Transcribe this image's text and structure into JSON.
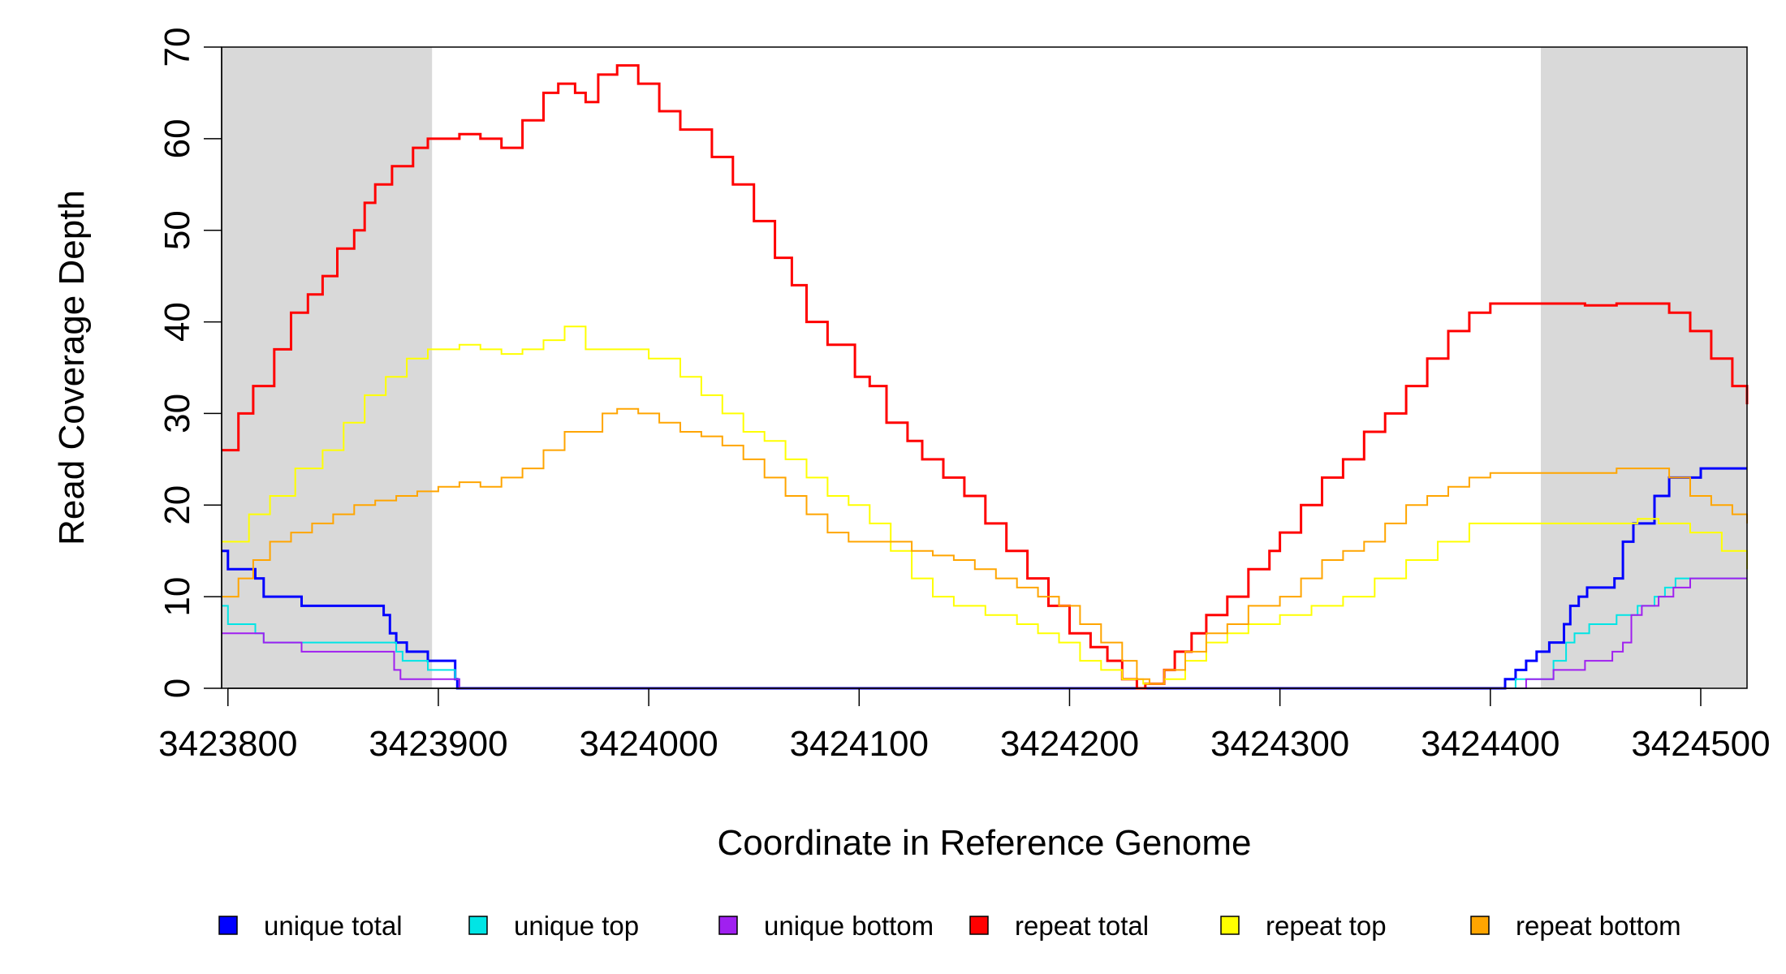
{
  "chart_data": {
    "type": "line",
    "title": "",
    "xlabel": "Coordinate in Reference Genome",
    "ylabel": "Read Coverage Depth",
    "xlim": [
      3423797,
      3424522
    ],
    "ylim": [
      0,
      70
    ],
    "x_ticks": [
      3423800,
      3423900,
      3424000,
      3424100,
      3424200,
      3424300,
      3424400,
      3424500
    ],
    "y_ticks": [
      0,
      10,
      20,
      30,
      40,
      50,
      60,
      70
    ],
    "shaded_regions": [
      [
        3423797,
        3423897
      ],
      [
        3424424,
        3424522
      ]
    ],
    "shade_color": "#d9d9d9",
    "legend_position": "bottom",
    "series": [
      {
        "name": "unique total",
        "color": "#0000ff",
        "width": 3,
        "points": [
          [
            3423797,
            15
          ],
          [
            3423800,
            13
          ],
          [
            3423813,
            12
          ],
          [
            3423817,
            10
          ],
          [
            3423835,
            9
          ],
          [
            3423874,
            8
          ],
          [
            3423877,
            6
          ],
          [
            3423880,
            5
          ],
          [
            3423885,
            4
          ],
          [
            3423895,
            3
          ],
          [
            3423908,
            1
          ],
          [
            3423909,
            0
          ],
          [
            3424405,
            0
          ],
          [
            3424407,
            1
          ],
          [
            3424412,
            2
          ],
          [
            3424417,
            3
          ],
          [
            3424422,
            4
          ],
          [
            3424428,
            5
          ],
          [
            3424435,
            7
          ],
          [
            3424438,
            9
          ],
          [
            3424442,
            10
          ],
          [
            3424446,
            11
          ],
          [
            3424459,
            12
          ],
          [
            3424463,
            16
          ],
          [
            3424468,
            18
          ],
          [
            3424478,
            21
          ],
          [
            3424485,
            23
          ],
          [
            3424500,
            24
          ],
          [
            3424522,
            24
          ]
        ]
      },
      {
        "name": "unique top",
        "color": "#00e5e5",
        "width": 2,
        "points": [
          [
            3423797,
            9
          ],
          [
            3423800,
            7
          ],
          [
            3423813,
            6
          ],
          [
            3423817,
            5
          ],
          [
            3423874,
            5
          ],
          [
            3423880,
            4
          ],
          [
            3423883,
            3
          ],
          [
            3423895,
            2
          ],
          [
            3423908,
            1
          ],
          [
            3423910,
            0
          ],
          [
            3424410,
            0
          ],
          [
            3424412,
            1
          ],
          [
            3424424,
            1
          ],
          [
            3424430,
            3
          ],
          [
            3424436,
            5
          ],
          [
            3424440,
            6
          ],
          [
            3424447,
            7
          ],
          [
            3424460,
            8
          ],
          [
            3424470,
            9
          ],
          [
            3424478,
            10
          ],
          [
            3424483,
            11
          ],
          [
            3424488,
            12
          ],
          [
            3424522,
            12
          ]
        ]
      },
      {
        "name": "unique bottom",
        "color": "#a020f0",
        "width": 2,
        "points": [
          [
            3423797,
            6
          ],
          [
            3423812,
            6
          ],
          [
            3423817,
            5
          ],
          [
            3423835,
            4
          ],
          [
            3423875,
            4
          ],
          [
            3423879,
            2
          ],
          [
            3423882,
            1
          ],
          [
            3423905,
            1
          ],
          [
            3423910,
            0
          ],
          [
            3424415,
            0
          ],
          [
            3424417,
            1
          ],
          [
            3424430,
            2
          ],
          [
            3424445,
            3
          ],
          [
            3424458,
            4
          ],
          [
            3424463,
            5
          ],
          [
            3424467,
            8
          ],
          [
            3424472,
            9
          ],
          [
            3424480,
            10
          ],
          [
            3424487,
            11
          ],
          [
            3424495,
            12
          ],
          [
            3424522,
            12
          ]
        ]
      },
      {
        "name": "repeat total",
        "color": "#ff0000",
        "width": 3,
        "points": [
          [
            3423797,
            26
          ],
          [
            3423805,
            30
          ],
          [
            3423812,
            33
          ],
          [
            3423822,
            37
          ],
          [
            3423830,
            41
          ],
          [
            3423838,
            43
          ],
          [
            3423845,
            45
          ],
          [
            3423852,
            48
          ],
          [
            3423860,
            50
          ],
          [
            3423865,
            53
          ],
          [
            3423870,
            55
          ],
          [
            3423878,
            57
          ],
          [
            3423888,
            59
          ],
          [
            3423895,
            60
          ],
          [
            3423900,
            60
          ],
          [
            3423910,
            60.5
          ],
          [
            3423920,
            60
          ],
          [
            3423930,
            59
          ],
          [
            3423940,
            62
          ],
          [
            3423950,
            65
          ],
          [
            3423957,
            66
          ],
          [
            3423965,
            65
          ],
          [
            3423970,
            64
          ],
          [
            3423976,
            67
          ],
          [
            3423985,
            68
          ],
          [
            3423995,
            66
          ],
          [
            3424005,
            63
          ],
          [
            3424015,
            61
          ],
          [
            3424030,
            58
          ],
          [
            3424040,
            55
          ],
          [
            3424050,
            51
          ],
          [
            3424060,
            47
          ],
          [
            3424068,
            44
          ],
          [
            3424075,
            40
          ],
          [
            3424085,
            37.5
          ],
          [
            3424098,
            34
          ],
          [
            3424105,
            33
          ],
          [
            3424113,
            29
          ],
          [
            3424123,
            27
          ],
          [
            3424130,
            25
          ],
          [
            3424140,
            23
          ],
          [
            3424150,
            21
          ],
          [
            3424160,
            18
          ],
          [
            3424170,
            15
          ],
          [
            3424180,
            12
          ],
          [
            3424190,
            9
          ],
          [
            3424200,
            6
          ],
          [
            3424210,
            4.5
          ],
          [
            3424218,
            3
          ],
          [
            3424225,
            1
          ],
          [
            3424232,
            0
          ],
          [
            3424236,
            0.5
          ],
          [
            3424245,
            2
          ],
          [
            3424250,
            4
          ],
          [
            3424258,
            6
          ],
          [
            3424265,
            8
          ],
          [
            3424275,
            10
          ],
          [
            3424285,
            13
          ],
          [
            3424295,
            15
          ],
          [
            3424300,
            17
          ],
          [
            3424310,
            20
          ],
          [
            3424320,
            23
          ],
          [
            3424330,
            25
          ],
          [
            3424340,
            28
          ],
          [
            3424350,
            30
          ],
          [
            3424360,
            33
          ],
          [
            3424370,
            36
          ],
          [
            3424380,
            39
          ],
          [
            3424390,
            41
          ],
          [
            3424400,
            42
          ],
          [
            3424425,
            42
          ],
          [
            3424445,
            41.8
          ],
          [
            3424460,
            42
          ],
          [
            3424475,
            42
          ],
          [
            3424485,
            41
          ],
          [
            3424495,
            39
          ],
          [
            3424505,
            36
          ],
          [
            3424515,
            33
          ],
          [
            3424522,
            31
          ]
        ]
      },
      {
        "name": "repeat top",
        "color": "#ffff00",
        "width": 2,
        "points": [
          [
            3423797,
            16
          ],
          [
            3423810,
            19
          ],
          [
            3423820,
            21
          ],
          [
            3423832,
            24
          ],
          [
            3423845,
            26
          ],
          [
            3423855,
            29
          ],
          [
            3423865,
            32
          ],
          [
            3423875,
            34
          ],
          [
            3423885,
            36
          ],
          [
            3423895,
            37
          ],
          [
            3423910,
            37.5
          ],
          [
            3423920,
            37
          ],
          [
            3423930,
            36.5
          ],
          [
            3423940,
            37
          ],
          [
            3423950,
            38
          ],
          [
            3423960,
            39.5
          ],
          [
            3423970,
            37
          ],
          [
            3423980,
            37
          ],
          [
            3423990,
            37
          ],
          [
            3424000,
            36
          ],
          [
            3424015,
            34
          ],
          [
            3424025,
            32
          ],
          [
            3424035,
            30
          ],
          [
            3424045,
            28
          ],
          [
            3424055,
            27
          ],
          [
            3424065,
            25
          ],
          [
            3424075,
            23
          ],
          [
            3424085,
            21
          ],
          [
            3424095,
            20
          ],
          [
            3424105,
            18
          ],
          [
            3424115,
            15
          ],
          [
            3424125,
            12
          ],
          [
            3424135,
            10
          ],
          [
            3424145,
            9
          ],
          [
            3424160,
            8
          ],
          [
            3424175,
            7
          ],
          [
            3424185,
            6
          ],
          [
            3424195,
            5
          ],
          [
            3424205,
            3
          ],
          [
            3424215,
            2
          ],
          [
            3424225,
            1
          ],
          [
            3424235,
            0.5
          ],
          [
            3424245,
            1
          ],
          [
            3424255,
            3
          ],
          [
            3424265,
            5
          ],
          [
            3424275,
            6
          ],
          [
            3424285,
            7
          ],
          [
            3424300,
            8
          ],
          [
            3424315,
            9
          ],
          [
            3424330,
            10
          ],
          [
            3424345,
            12
          ],
          [
            3424360,
            14
          ],
          [
            3424375,
            16
          ],
          [
            3424390,
            18
          ],
          [
            3424400,
            18
          ],
          [
            3424430,
            18
          ],
          [
            3424470,
            18.5
          ],
          [
            3424480,
            18
          ],
          [
            3424495,
            17
          ],
          [
            3424510,
            15
          ],
          [
            3424522,
            13
          ]
        ]
      },
      {
        "name": "repeat bottom",
        "color": "#ffa500",
        "width": 2,
        "points": [
          [
            3423797,
            10
          ],
          [
            3423805,
            12
          ],
          [
            3423812,
            14
          ],
          [
            3423820,
            16
          ],
          [
            3423830,
            17
          ],
          [
            3423840,
            18
          ],
          [
            3423850,
            19
          ],
          [
            3423860,
            20
          ],
          [
            3423870,
            20.5
          ],
          [
            3423880,
            21
          ],
          [
            3423890,
            21.5
          ],
          [
            3423900,
            22
          ],
          [
            3423910,
            22.5
          ],
          [
            3423920,
            22
          ],
          [
            3423930,
            23
          ],
          [
            3423940,
            24
          ],
          [
            3423950,
            26
          ],
          [
            3423960,
            28
          ],
          [
            3423970,
            28
          ],
          [
            3423978,
            30
          ],
          [
            3423985,
            30.5
          ],
          [
            3423995,
            30
          ],
          [
            3424005,
            29
          ],
          [
            3424015,
            28
          ],
          [
            3424025,
            27.5
          ],
          [
            3424035,
            26.5
          ],
          [
            3424045,
            25
          ],
          [
            3424055,
            23
          ],
          [
            3424065,
            21
          ],
          [
            3424075,
            19
          ],
          [
            3424085,
            17
          ],
          [
            3424095,
            16
          ],
          [
            3424105,
            16
          ],
          [
            3424115,
            16
          ],
          [
            3424125,
            15
          ],
          [
            3424135,
            14.5
          ],
          [
            3424145,
            14
          ],
          [
            3424155,
            13
          ],
          [
            3424165,
            12
          ],
          [
            3424175,
            11
          ],
          [
            3424185,
            10
          ],
          [
            3424195,
            9
          ],
          [
            3424205,
            7
          ],
          [
            3424215,
            5
          ],
          [
            3424225,
            3
          ],
          [
            3424232,
            1
          ],
          [
            3424238,
            0.5
          ],
          [
            3424245,
            2
          ],
          [
            3424255,
            4
          ],
          [
            3424265,
            6
          ],
          [
            3424275,
            7
          ],
          [
            3424285,
            9
          ],
          [
            3424300,
            10
          ],
          [
            3424310,
            12
          ],
          [
            3424320,
            14
          ],
          [
            3424330,
            15
          ],
          [
            3424340,
            16
          ],
          [
            3424350,
            18
          ],
          [
            3424360,
            20
          ],
          [
            3424370,
            21
          ],
          [
            3424380,
            22
          ],
          [
            3424390,
            23
          ],
          [
            3424400,
            23.5
          ],
          [
            3424420,
            23.5
          ],
          [
            3424440,
            23.5
          ],
          [
            3424460,
            24
          ],
          [
            3424475,
            24
          ],
          [
            3424485,
            23
          ],
          [
            3424495,
            21
          ],
          [
            3424505,
            20
          ],
          [
            3424515,
            19
          ],
          [
            3424522,
            18
          ]
        ]
      }
    ]
  }
}
